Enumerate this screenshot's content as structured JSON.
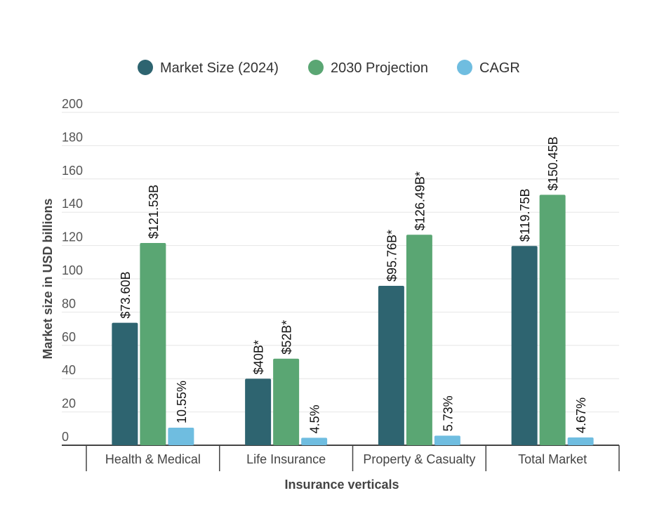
{
  "chart_data": {
    "type": "bar",
    "xlabel": "Insurance verticals",
    "ylabel": "Market size in USD billions",
    "ylim": [
      0,
      200
    ],
    "yticks": [
      0,
      20,
      40,
      60,
      80,
      100,
      120,
      140,
      160,
      180,
      200
    ],
    "grid": true,
    "legend_position": "top",
    "categories": [
      "Health & Medical",
      "Life Insurance",
      "Property & Casualty",
      "Total Market"
    ],
    "series": [
      {
        "name": "Market Size (2024)",
        "color": "#2e6470",
        "values": [
          73.6,
          40,
          95.76,
          119.75
        ],
        "labels": [
          "$73.60B",
          "$40B*",
          "$95.76B*",
          "$119.75B"
        ]
      },
      {
        "name": "2030 Projection",
        "color": "#5aa673",
        "values": [
          121.53,
          52,
          126.49,
          150.45
        ],
        "labels": [
          "$121.53B",
          "$52B*",
          "$126.49B*",
          "$150.45B"
        ]
      },
      {
        "name": "CAGR",
        "color": "#6fbde0",
        "values": [
          10.55,
          4.5,
          5.73,
          4.67
        ],
        "labels": [
          "10.55%",
          "4.5%",
          "5.73%",
          "4.67%"
        ]
      }
    ]
  }
}
